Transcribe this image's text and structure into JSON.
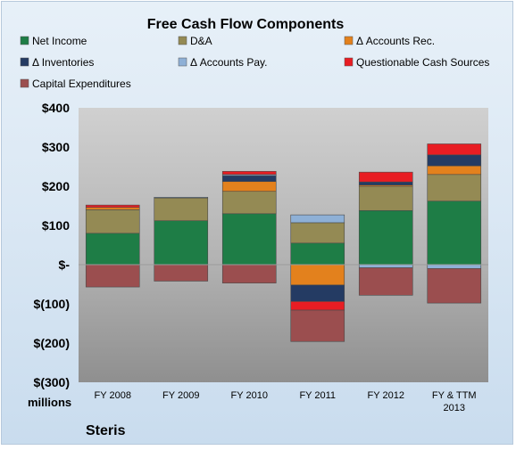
{
  "chart_data": {
    "type": "bar",
    "stacked": true,
    "title": "Free Cash Flow Components",
    "company": "Steris",
    "y_unit_label": "millions",
    "categories": [
      "FY 2008",
      "FY 2009",
      "FY 2010",
      "FY 2011",
      "FY 2012",
      "FY & TTM 2013"
    ],
    "ylim": [
      -300,
      400
    ],
    "yticks": [
      -300,
      -200,
      -100,
      0,
      100,
      200,
      300,
      400
    ],
    "ytick_labels": [
      "$(300)",
      "$(200)",
      "$(100)",
      "$-",
      "$100",
      "$200",
      "$300",
      "$400"
    ],
    "legend_position": "top",
    "grid": false,
    "series": [
      {
        "name": "Net Income",
        "color": "#1e7d46",
        "values": [
          80,
          112,
          130,
          55,
          138,
          162
        ]
      },
      {
        "name": "D&A",
        "color": "#948a54",
        "values": [
          60,
          58,
          57,
          52,
          62,
          68
        ]
      },
      {
        "name": "Δ Accounts Rec.",
        "color": "#e3811d",
        "values": [
          6,
          0,
          25,
          -52,
          3,
          22
        ]
      },
      {
        "name": "Δ Inventories",
        "color": "#243b63",
        "values": [
          0,
          0,
          15,
          -42,
          8,
          28
        ]
      },
      {
        "name": "Δ Accounts Pay.",
        "color": "#8eb0d6",
        "values": [
          0,
          2,
          3,
          20,
          -8,
          -10
        ]
      },
      {
        "name": "Questionable Cash Sources",
        "color": "#e81d23",
        "values": [
          6,
          0,
          8,
          -22,
          25,
          28
        ]
      },
      {
        "name": "Capital Expenditures",
        "color": "#9b4e4f",
        "values": [
          -57,
          -42,
          -47,
          -80,
          -70,
          -88
        ]
      }
    ]
  }
}
